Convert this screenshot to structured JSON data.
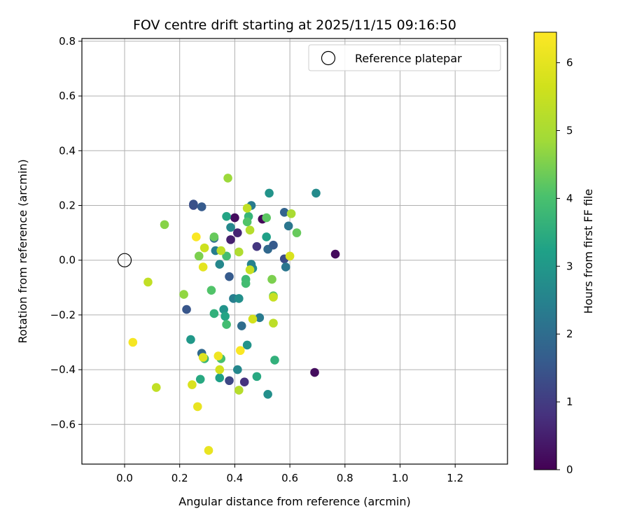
{
  "chart_data": {
    "type": "scatter",
    "title": "FOV centre drift starting at 2025/11/15 09:16:50",
    "xlabel": "Angular distance from reference (arcmin)",
    "ylabel": "Rotation from reference (arcmin)",
    "xlim": [
      -0.155,
      1.39
    ],
    "ylim": [
      -0.745,
      0.81
    ],
    "xticks": [
      0.0,
      0.2,
      0.4,
      0.6,
      0.8,
      1.0,
      1.2
    ],
    "xtick_labels": [
      "0.0",
      "0.2",
      "0.4",
      "0.6",
      "0.8",
      "1.0",
      "1.2"
    ],
    "yticks": [
      -0.6,
      -0.4,
      -0.2,
      0.0,
      0.2,
      0.4,
      0.6,
      0.8
    ],
    "ytick_labels": [
      "−0.6",
      "−0.4",
      "−0.2",
      "0.0",
      "0.2",
      "0.4",
      "0.6",
      "0.8"
    ],
    "grid": true,
    "legend": {
      "label": "Reference platepar",
      "placement": "top-right"
    },
    "reference_point": {
      "x": 0.0,
      "y": 0.0
    },
    "colorbar": {
      "label": "Hours from first FF file",
      "range": [
        0,
        6.45
      ],
      "ticks": [
        0,
        1,
        2,
        3,
        4,
        5,
        6
      ],
      "tick_labels": [
        "0",
        "1",
        "2",
        "3",
        "4",
        "5",
        "6"
      ],
      "colormap": "viridis"
    },
    "points": [
      {
        "x": 0.25,
        "y": 0.2,
        "h": 1.3
      },
      {
        "x": 0.25,
        "y": 0.205,
        "h": 1.4
      },
      {
        "x": 0.28,
        "y": 0.195,
        "h": 1.6
      },
      {
        "x": 0.4,
        "y": 0.155,
        "h": 0.2
      },
      {
        "x": 0.41,
        "y": 0.1,
        "h": 0.6
      },
      {
        "x": 0.5,
        "y": 0.15,
        "h": 0.1
      },
      {
        "x": 0.385,
        "y": 0.075,
        "h": 0.5
      },
      {
        "x": 0.48,
        "y": 0.05,
        "h": 0.9
      },
      {
        "x": 0.765,
        "y": 0.022,
        "h": 0.15
      },
      {
        "x": 0.69,
        "y": -0.41,
        "h": 0.2
      },
      {
        "x": 0.435,
        "y": -0.445,
        "h": 0.8
      },
      {
        "x": 0.38,
        "y": -0.44,
        "h": 1.2
      },
      {
        "x": 0.225,
        "y": -0.18,
        "h": 1.5
      },
      {
        "x": 0.28,
        "y": -0.34,
        "h": 1.9
      },
      {
        "x": 0.58,
        "y": 0.175,
        "h": 1.8
      },
      {
        "x": 0.595,
        "y": 0.125,
        "h": 2.2
      },
      {
        "x": 0.52,
        "y": 0.04,
        "h": 1.9
      },
      {
        "x": 0.54,
        "y": 0.055,
        "h": 1.6
      },
      {
        "x": 0.58,
        "y": 0.005,
        "h": 1.3
      },
      {
        "x": 0.585,
        "y": -0.025,
        "h": 2.2
      },
      {
        "x": 0.38,
        "y": -0.06,
        "h": 1.6
      },
      {
        "x": 0.425,
        "y": -0.24,
        "h": 2.0
      },
      {
        "x": 0.49,
        "y": -0.21,
        "h": 2.3
      },
      {
        "x": 0.41,
        "y": -0.4,
        "h": 2.6
      },
      {
        "x": 0.385,
        "y": 0.12,
        "h": 2.6
      },
      {
        "x": 0.325,
        "y": 0.08,
        "h": 2.0
      },
      {
        "x": 0.33,
        "y": 0.035,
        "h": 2.4
      },
      {
        "x": 0.345,
        "y": -0.015,
        "h": 2.6
      },
      {
        "x": 0.46,
        "y": 0.2,
        "h": 2.3
      },
      {
        "x": 0.525,
        "y": 0.245,
        "h": 2.9
      },
      {
        "x": 0.695,
        "y": 0.245,
        "h": 2.7
      },
      {
        "x": 0.465,
        "y": -0.03,
        "h": 2.8
      },
      {
        "x": 0.46,
        "y": -0.015,
        "h": 2.5
      },
      {
        "x": 0.395,
        "y": -0.14,
        "h": 2.4
      },
      {
        "x": 0.415,
        "y": -0.14,
        "h": 2.8
      },
      {
        "x": 0.36,
        "y": -0.18,
        "h": 2.9
      },
      {
        "x": 0.365,
        "y": -0.205,
        "h": 3.3
      },
      {
        "x": 0.24,
        "y": -0.29,
        "h": 3.0
      },
      {
        "x": 0.445,
        "y": -0.31,
        "h": 2.9
      },
      {
        "x": 0.52,
        "y": -0.49,
        "h": 2.8
      },
      {
        "x": 0.275,
        "y": -0.435,
        "h": 3.4
      },
      {
        "x": 0.345,
        "y": -0.43,
        "h": 3.2
      },
      {
        "x": 0.48,
        "y": -0.425,
        "h": 3.4
      },
      {
        "x": 0.37,
        "y": 0.16,
        "h": 3.3
      },
      {
        "x": 0.515,
        "y": 0.085,
        "h": 3.2
      },
      {
        "x": 0.545,
        "y": -0.365,
        "h": 3.6
      },
      {
        "x": 0.29,
        "y": -0.36,
        "h": 3.7
      },
      {
        "x": 0.35,
        "y": -0.36,
        "h": 4.0
      },
      {
        "x": 0.325,
        "y": -0.195,
        "h": 3.6
      },
      {
        "x": 0.37,
        "y": -0.235,
        "h": 3.9
      },
      {
        "x": 0.44,
        "y": -0.07,
        "h": 3.8
      },
      {
        "x": 0.44,
        "y": -0.085,
        "h": 3.9
      },
      {
        "x": 0.37,
        "y": 0.015,
        "h": 3.9
      },
      {
        "x": 0.45,
        "y": 0.16,
        "h": 3.7
      },
      {
        "x": 0.445,
        "y": 0.14,
        "h": 4.1
      },
      {
        "x": 0.515,
        "y": 0.155,
        "h": 4.2
      },
      {
        "x": 0.315,
        "y": -0.11,
        "h": 4.1
      },
      {
        "x": 0.54,
        "y": -0.13,
        "h": 4.2
      },
      {
        "x": 0.535,
        "y": -0.07,
        "h": 4.5
      },
      {
        "x": 0.625,
        "y": 0.1,
        "h": 4.3
      },
      {
        "x": 0.325,
        "y": 0.085,
        "h": 4.3
      },
      {
        "x": 0.27,
        "y": 0.015,
        "h": 4.5
      },
      {
        "x": 0.145,
        "y": 0.13,
        "h": 4.6
      },
      {
        "x": 0.215,
        "y": -0.125,
        "h": 4.7
      },
      {
        "x": 0.375,
        "y": 0.3,
        "h": 4.8
      },
      {
        "x": 0.605,
        "y": 0.17,
        "h": 5.0
      },
      {
        "x": 0.455,
        "y": 0.11,
        "h": 5.2
      },
      {
        "x": 0.445,
        "y": 0.19,
        "h": 5.4
      },
      {
        "x": 0.415,
        "y": 0.03,
        "h": 5.1
      },
      {
        "x": 0.35,
        "y": 0.035,
        "h": 5.3
      },
      {
        "x": 0.455,
        "y": -0.035,
        "h": 5.5
      },
      {
        "x": 0.29,
        "y": 0.045,
        "h": 5.6
      },
      {
        "x": 0.6,
        "y": 0.015,
        "h": 5.8
      },
      {
        "x": 0.085,
        "y": -0.08,
        "h": 5.4
      },
      {
        "x": 0.465,
        "y": -0.215,
        "h": 5.7
      },
      {
        "x": 0.54,
        "y": -0.23,
        "h": 5.3
      },
      {
        "x": 0.54,
        "y": -0.135,
        "h": 5.5
      },
      {
        "x": 0.285,
        "y": -0.355,
        "h": 5.9
      },
      {
        "x": 0.345,
        "y": -0.4,
        "h": 5.7
      },
      {
        "x": 0.415,
        "y": -0.475,
        "h": 5.2
      },
      {
        "x": 0.115,
        "y": -0.465,
        "h": 5.4
      },
      {
        "x": 0.245,
        "y": -0.455,
        "h": 5.8
      },
      {
        "x": 0.265,
        "y": -0.535,
        "h": 6.1
      },
      {
        "x": 0.285,
        "y": -0.025,
        "h": 6.0
      },
      {
        "x": 0.26,
        "y": 0.085,
        "h": 6.4
      },
      {
        "x": 0.03,
        "y": -0.3,
        "h": 6.3
      },
      {
        "x": 0.42,
        "y": -0.33,
        "h": 6.4
      },
      {
        "x": 0.34,
        "y": -0.35,
        "h": 6.2
      },
      {
        "x": 0.305,
        "y": -0.695,
        "h": 6.1
      }
    ]
  }
}
